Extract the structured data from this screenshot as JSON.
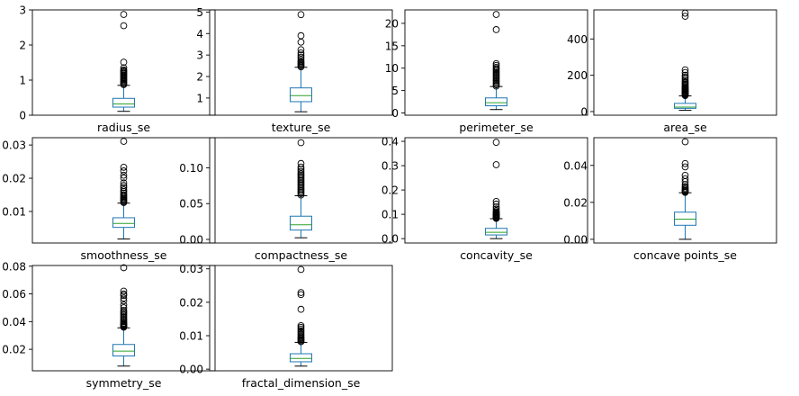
{
  "chart_data": [
    {
      "type": "box",
      "xlabel": "radius_se",
      "ylim": [
        0,
        3
      ],
      "yticks": [
        0,
        1,
        2,
        3
      ],
      "whisker_low": 0.11,
      "q1": 0.23,
      "median": 0.32,
      "q3": 0.48,
      "whisker_high": 0.85,
      "outliers": [
        0.87,
        0.9,
        0.93,
        0.96,
        0.99,
        1.02,
        1.05,
        1.08,
        1.11,
        1.14,
        1.17,
        1.2,
        1.23,
        1.26,
        1.29,
        1.35,
        1.51,
        2.55,
        2.87
      ]
    },
    {
      "type": "box",
      "xlabel": "texture_se",
      "ylim": [
        0.2,
        5.1
      ],
      "yticks": [
        1,
        2,
        3,
        4,
        5
      ],
      "whisker_low": 0.36,
      "q1": 0.83,
      "median": 1.11,
      "q3": 1.47,
      "whisker_high": 2.43,
      "outliers": [
        2.45,
        2.5,
        2.55,
        2.6,
        2.65,
        2.7,
        2.8,
        2.9,
        3.0,
        3.1,
        3.25,
        3.6,
        3.9,
        4.88
      ]
    },
    {
      "type": "box",
      "xlabel": "perimeter_se",
      "ylim": [
        -0.5,
        23
      ],
      "yticks": [
        0,
        5,
        10,
        15,
        20
      ],
      "whisker_low": 0.76,
      "q1": 1.6,
      "median": 2.29,
      "q3": 3.36,
      "whisker_high": 5.9,
      "outliers": [
        6.0,
        6.3,
        6.6,
        6.9,
        7.2,
        7.5,
        7.8,
        8.1,
        8.4,
        8.7,
        9.0,
        9.3,
        9.6,
        9.9,
        10.2,
        10.6,
        11.0,
        18.6,
        21.98
      ]
    },
    {
      "type": "box",
      "xlabel": "area_se",
      "ylim": [
        -20,
        560
      ],
      "yticks": [
        0,
        200,
        400
      ],
      "whisker_low": 6.8,
      "q1": 17.85,
      "median": 24.53,
      "q3": 45.19,
      "whisker_high": 86.2,
      "outliers": [
        88,
        92,
        96,
        100,
        104,
        108,
        112,
        116,
        120,
        124,
        128,
        132,
        138,
        144,
        150,
        156,
        162,
        170,
        180,
        190,
        200,
        215,
        230,
        525,
        542
      ]
    },
    {
      "type": "box",
      "xlabel": "smoothness_se",
      "ylim": [
        0.0005,
        0.0322
      ],
      "yticks": [
        0.01,
        0.02,
        0.03
      ],
      "whisker_low": 0.0017,
      "q1": 0.0052,
      "median": 0.0064,
      "q3": 0.0081,
      "whisker_high": 0.0125,
      "outliers": [
        0.0127,
        0.013,
        0.0133,
        0.0136,
        0.0139,
        0.0142,
        0.0146,
        0.015,
        0.0155,
        0.016,
        0.0165,
        0.0172,
        0.0178,
        0.0186,
        0.0201,
        0.0209,
        0.0222,
        0.0233,
        0.0311
      ]
    },
    {
      "type": "box",
      "xlabel": "compactness_se",
      "ylim": [
        -0.005,
        0.142
      ],
      "yticks": [
        0.0,
        0.05,
        0.1
      ],
      "whisker_low": 0.0023,
      "q1": 0.0131,
      "median": 0.0204,
      "q3": 0.0324,
      "whisker_high": 0.061,
      "outliers": [
        0.062,
        0.064,
        0.066,
        0.068,
        0.07,
        0.072,
        0.074,
        0.076,
        0.078,
        0.08,
        0.082,
        0.084,
        0.086,
        0.088,
        0.09,
        0.092,
        0.095,
        0.098,
        0.101,
        0.106,
        0.135
      ]
    },
    {
      "type": "box",
      "xlabel": "concavity_se",
      "ylim": [
        -0.018,
        0.415
      ],
      "yticks": [
        0.0,
        0.1,
        0.2,
        0.3,
        0.4
      ],
      "whisker_low": 0.0,
      "q1": 0.0151,
      "median": 0.0259,
      "q3": 0.0422,
      "whisker_high": 0.082,
      "outliers": [
        0.083,
        0.085,
        0.087,
        0.089,
        0.091,
        0.093,
        0.095,
        0.097,
        0.099,
        0.101,
        0.103,
        0.106,
        0.11,
        0.115,
        0.122,
        0.13,
        0.142,
        0.153,
        0.304,
        0.396
      ]
    },
    {
      "type": "box",
      "xlabel": "concave points_se",
      "ylim": [
        -0.002,
        0.055
      ],
      "yticks": [
        0.0,
        0.02,
        0.04
      ],
      "whisker_low": 0.0,
      "q1": 0.0076,
      "median": 0.0109,
      "q3": 0.0147,
      "whisker_high": 0.0252,
      "outliers": [
        0.0254,
        0.0258,
        0.0262,
        0.0266,
        0.0272,
        0.0278,
        0.0286,
        0.0296,
        0.0312,
        0.0328,
        0.0346,
        0.0392,
        0.041,
        0.0528
      ]
    },
    {
      "type": "box",
      "xlabel": "symmetry_se",
      "ylim": [
        0.0045,
        0.0805
      ],
      "yticks": [
        0.02,
        0.04,
        0.06,
        0.08
      ],
      "whisker_low": 0.0079,
      "q1": 0.0152,
      "median": 0.0187,
      "q3": 0.0235,
      "whisker_high": 0.0355,
      "outliers": [
        0.036,
        0.0365,
        0.037,
        0.0375,
        0.038,
        0.0385,
        0.039,
        0.04,
        0.041,
        0.042,
        0.043,
        0.044,
        0.045,
        0.046,
        0.047,
        0.048,
        0.05,
        0.052,
        0.055,
        0.057,
        0.059,
        0.06,
        0.062,
        0.0789
      ]
    },
    {
      "type": "box",
      "xlabel": "fractal_dimension_se",
      "ylim": [
        -0.0005,
        0.031
      ],
      "yticks": [
        0.0,
        0.01,
        0.02,
        0.03
      ],
      "whisker_low": 0.0009,
      "q1": 0.0022,
      "median": 0.0032,
      "q3": 0.0046,
      "whisker_high": 0.008,
      "outliers": [
        0.0082,
        0.0085,
        0.0088,
        0.0091,
        0.0094,
        0.0097,
        0.0101,
        0.0105,
        0.011,
        0.0115,
        0.012,
        0.0125,
        0.013,
        0.0179,
        0.0223,
        0.0229,
        0.0298
      ]
    }
  ],
  "colors": {
    "box": "#1f77b4",
    "median": "#2ca02c",
    "axis": "#000000",
    "outlier": "#000000"
  }
}
